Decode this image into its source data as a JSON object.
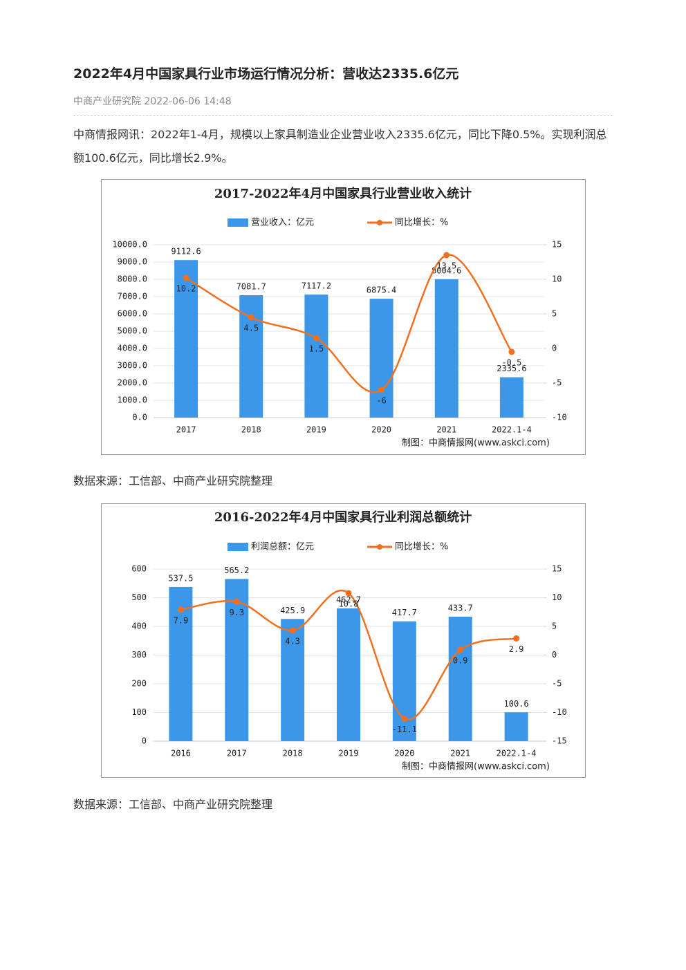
{
  "header": {
    "title": "2022年4月中国家具行业市场运行情况分析：营收达2335.6亿元",
    "meta": "中商产业研究院 2022-06-06 14:48"
  },
  "body": {
    "paragraph": "中商情报网讯：2022年1-4月，规模以上家具制造业企业营业收入2335.6亿元，同比下降0.5%。实现利润总额100.6亿元，同比增长2.9%。",
    "sources": [
      "数据来源：工信部、中商产业研究院整理",
      "数据来源：工信部、中商产业研究院整理"
    ]
  },
  "chart_data": [
    {
      "type": "bar_line",
      "title": "2017-2022年4月中国家具行业营业收入统计",
      "credit": "制图：中商情报网(www.askci.com)",
      "categories": [
        "2017",
        "2018",
        "2019",
        "2020",
        "2021",
        "2022.1-4"
      ],
      "series": [
        {
          "name": "营业收入：亿元",
          "color": "#3d97e8",
          "values": [
            9112.6,
            7081.7,
            7117.2,
            6875.4,
            8004.6,
            2335.6
          ]
        },
        {
          "name": "同比增长：%",
          "color": "#f07020",
          "axis": "y2",
          "values": [
            10.2,
            4.5,
            1.5,
            -6,
            13.5,
            -0.5
          ]
        }
      ],
      "ylim": [
        0,
        10000
      ],
      "yticks": [
        {
          "value": 0,
          "label": "0.0"
        },
        {
          "value": 1000,
          "label": "1000.0"
        },
        {
          "value": 2000,
          "label": "2000.0"
        },
        {
          "value": 3000,
          "label": "3000.0"
        },
        {
          "value": 4000,
          "label": "4000.0"
        },
        {
          "value": 5000,
          "label": "5000.0"
        },
        {
          "value": 6000,
          "label": "6000.0"
        },
        {
          "value": 7000,
          "label": "7000.0"
        },
        {
          "value": 8000,
          "label": "8000.0"
        },
        {
          "value": 9000,
          "label": "9000.0"
        },
        {
          "value": 10000,
          "label": "10000.0"
        }
      ],
      "y2lim": [
        -10,
        15
      ],
      "y2ticks": [
        -10,
        -5,
        0,
        5,
        10,
        15
      ],
      "grid": true
    },
    {
      "type": "bar_line",
      "title": "2016-2022年4月中国家具行业利润总额统计",
      "credit": "制图：中商情报网(www.askci.com)",
      "categories": [
        "2016",
        "2017",
        "2018",
        "2019",
        "2020",
        "2021",
        "2022.1-4"
      ],
      "series": [
        {
          "name": "利润总额：亿元",
          "color": "#3d97e8",
          "values": [
            537.5,
            565.2,
            425.9,
            462.7,
            417.7,
            433.7,
            100.6
          ]
        },
        {
          "name": "同比增长：%",
          "color": "#f07020",
          "axis": "y2",
          "values": [
            7.9,
            9.3,
            4.3,
            10.8,
            -11.1,
            0.9,
            2.9
          ]
        }
      ],
      "ylim": [
        0,
        600
      ],
      "yticks": [
        0,
        100,
        200,
        300,
        400,
        500,
        600
      ],
      "y2lim": [
        -15,
        15
      ],
      "y2ticks": [
        -15,
        -10,
        -5,
        0,
        5,
        10,
        15
      ],
      "grid": true
    }
  ]
}
